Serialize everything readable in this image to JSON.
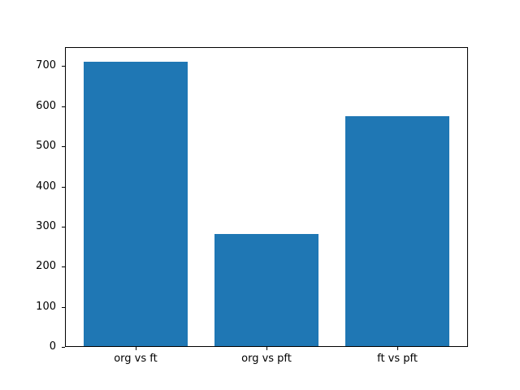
{
  "chart_data": {
    "type": "bar",
    "categories": [
      "org vs ft",
      "org vs pft",
      "ft vs pft"
    ],
    "values": [
      712,
      282,
      576
    ],
    "yticks": [
      0,
      100,
      200,
      300,
      400,
      500,
      600,
      700
    ],
    "ylim": [
      0,
      747.6
    ],
    "bar_color": "#1f77b4",
    "axis_color": "#000000",
    "background_color": "#ffffff",
    "grid": false,
    "legend": null
  }
}
